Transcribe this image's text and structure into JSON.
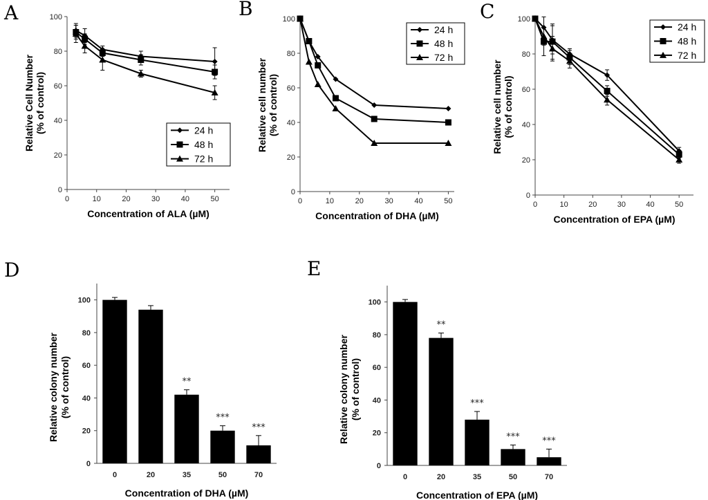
{
  "chart_data": [
    {
      "panel": "A",
      "type": "line",
      "xlabel": "Concentration of ALA (µM)",
      "ylabel": [
        "Relative Cell Number",
        "(% of control)"
      ],
      "xlim": [
        0,
        55
      ],
      "ylim": [
        0,
        100
      ],
      "xticks": [
        0,
        10,
        20,
        30,
        40,
        50
      ],
      "yticks": [
        0,
        20,
        40,
        60,
        80,
        100
      ],
      "legend_position": "lower-right",
      "series": [
        {
          "name": "24 h",
          "marker": "diamond",
          "x": [
            3,
            6,
            12,
            25,
            50
          ],
          "y": [
            92,
            89,
            81,
            77,
            74
          ],
          "err": [
            4,
            4,
            2,
            3,
            8
          ]
        },
        {
          "name": "48 h",
          "marker": "square",
          "x": [
            3,
            6,
            12,
            25,
            50
          ],
          "y": [
            91,
            87,
            79,
            75,
            68
          ],
          "err": [
            4,
            3,
            2,
            3,
            4
          ]
        },
        {
          "name": "72 h",
          "marker": "triangle",
          "x": [
            3,
            6,
            12,
            25,
            50
          ],
          "y": [
            90,
            83,
            75,
            67,
            56
          ],
          "err": [
            5,
            4,
            6,
            2,
            4
          ]
        }
      ]
    },
    {
      "panel": "B",
      "type": "line",
      "xlabel": "Concentration of DHA (µM)",
      "ylabel": [
        "Relative cell number",
        "(% of control)"
      ],
      "xlim": [
        0,
        52
      ],
      "ylim": [
        0,
        100
      ],
      "xticks": [
        0,
        10,
        20,
        30,
        40,
        50
      ],
      "yticks": [
        0,
        20,
        40,
        60,
        80,
        100
      ],
      "legend_position": "top-right",
      "series": [
        {
          "name": "24 h",
          "marker": "diamond",
          "x": [
            0,
            3,
            6,
            12,
            25,
            50
          ],
          "y": [
            100,
            87,
            78,
            65,
            50,
            48
          ],
          "err": [
            0,
            0,
            0,
            0,
            0,
            0
          ]
        },
        {
          "name": "48 h",
          "marker": "square",
          "x": [
            0,
            3,
            6,
            12,
            25,
            50
          ],
          "y": [
            100,
            87,
            73,
            54,
            42,
            40
          ],
          "err": [
            0,
            0,
            0,
            0,
            0,
            0
          ]
        },
        {
          "name": "72 h",
          "marker": "triangle",
          "x": [
            0,
            3,
            6,
            12,
            25,
            50
          ],
          "y": [
            100,
            75,
            62,
            48,
            28,
            28
          ],
          "err": [
            0,
            0,
            0,
            0,
            0,
            0
          ]
        }
      ]
    },
    {
      "panel": "C",
      "type": "line",
      "xlabel": "Concentration of EPA (µM)",
      "ylabel": [
        "Relative cell number",
        "(% of control)"
      ],
      "xlim": [
        0,
        55
      ],
      "ylim": [
        0,
        100
      ],
      "xticks": [
        0,
        10,
        20,
        30,
        40,
        50
      ],
      "yticks": [
        0,
        20,
        40,
        60,
        80,
        100
      ],
      "legend_position": "top-right",
      "series": [
        {
          "name": "24 h",
          "marker": "diamond",
          "x": [
            0,
            3,
            6,
            12,
            25,
            50
          ],
          "y": [
            100,
            95,
            88,
            80,
            68,
            25
          ],
          "err": [
            1,
            6,
            8,
            3,
            3,
            2
          ]
        },
        {
          "name": "48 h",
          "marker": "square",
          "x": [
            0,
            3,
            6,
            12,
            25,
            50
          ],
          "y": [
            100,
            87,
            87,
            78,
            59,
            23
          ],
          "err": [
            1,
            8,
            10,
            4,
            3,
            2
          ]
        },
        {
          "name": "72 h",
          "marker": "triangle",
          "x": [
            0,
            3,
            6,
            12,
            25,
            50
          ],
          "y": [
            100,
            90,
            83,
            76,
            54,
            20
          ],
          "err": [
            1,
            5,
            7,
            4,
            3,
            2
          ]
        }
      ]
    },
    {
      "panel": "D",
      "type": "bar",
      "xlabel": "Concentration of DHA (µM)",
      "ylabel": [
        "Relative colony number",
        "(% of control)"
      ],
      "ylim": [
        0,
        110
      ],
      "yticks": [
        0,
        20,
        40,
        60,
        80,
        100
      ],
      "categories": [
        "0",
        "20",
        "35",
        "50",
        "70"
      ],
      "values": [
        100,
        94,
        42,
        20,
        11
      ],
      "errors": [
        1.5,
        2.5,
        3,
        3,
        6
      ],
      "annotations": [
        "",
        "",
        "**",
        "***",
        "***"
      ]
    },
    {
      "panel": "E",
      "type": "bar",
      "xlabel": "Concentration of EPA (µM)",
      "ylabel": [
        "Relative colony number",
        "(% of control)"
      ],
      "ylim": [
        0,
        110
      ],
      "yticks": [
        0,
        20,
        40,
        60,
        80,
        100
      ],
      "categories": [
        "0",
        "20",
        "35",
        "50",
        "70"
      ],
      "values": [
        100,
        78,
        28,
        10,
        5
      ],
      "errors": [
        1.5,
        3,
        5,
        2.5,
        5
      ],
      "annotations": [
        "",
        "**",
        "***",
        "***",
        "***"
      ]
    }
  ]
}
